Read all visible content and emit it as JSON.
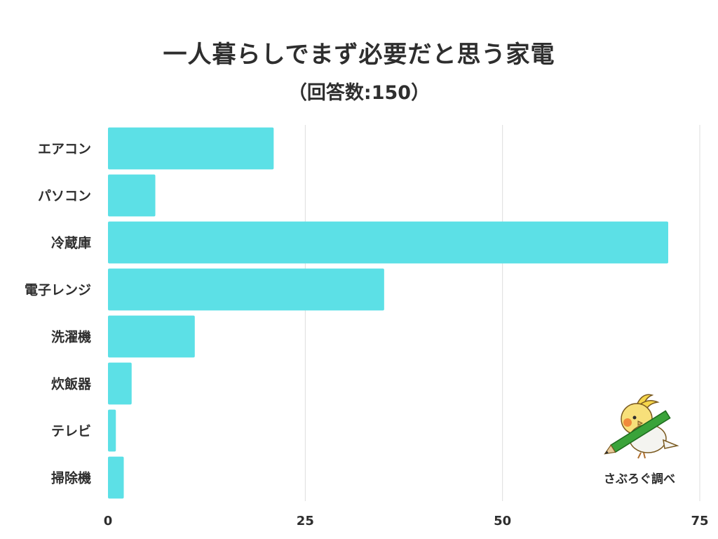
{
  "title": "一人暮らしでまず必要だと思う家電",
  "subtitle": "（回答数:150）",
  "credit": "さぶろぐ調べ",
  "chart_data": {
    "type": "bar",
    "orientation": "horizontal",
    "title": "一人暮らしでまず必要だと思う家電",
    "subtitle": "（回答数:150）",
    "categories": [
      "エアコン",
      "パソコン",
      "冷蔵庫",
      "電子レンジ",
      "洗濯機",
      "炊飯器",
      "テレビ",
      "掃除機"
    ],
    "values": [
      21,
      6,
      71,
      35,
      11,
      3,
      1,
      2
    ],
    "xlim": [
      0,
      75
    ],
    "xticks": [
      0,
      25,
      50,
      75
    ],
    "grid": true,
    "bar_color": "#5ce0e6",
    "grid_color": "#dddddd"
  },
  "mascot_icon": "bird-with-pencil-icon"
}
